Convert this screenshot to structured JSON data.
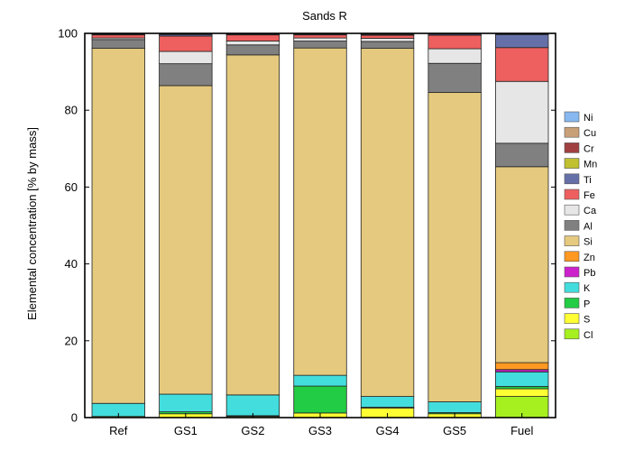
{
  "chart_data": {
    "type": "bar",
    "stacked": true,
    "title": "Sands R",
    "xlabel": "",
    "ylabel": "Elemental concentration [% by mass]",
    "ylim": [
      0,
      100
    ],
    "yticks": [
      0,
      20,
      40,
      60,
      80,
      100
    ],
    "categories": [
      "Ref",
      "GS1",
      "GS2",
      "GS3",
      "GS4",
      "GS5",
      "Fuel"
    ],
    "legend_position": "right",
    "series": [
      {
        "name": "Cl",
        "color": "#a6f020",
        "values": [
          0,
          0,
          0,
          0,
          0,
          0,
          5.5
        ]
      },
      {
        "name": "S",
        "color": "#ffff33",
        "values": [
          0.3,
          1.0,
          0.3,
          1.2,
          2.5,
          1.0,
          2.0
        ]
      },
      {
        "name": "P",
        "color": "#22cc44",
        "values": [
          0,
          0.5,
          0.2,
          7.0,
          0.2,
          0.3,
          0.6
        ]
      },
      {
        "name": "K",
        "color": "#44dddd",
        "values": [
          3.4,
          4.6,
          5.4,
          2.8,
          2.8,
          2.8,
          3.8
        ]
      },
      {
        "name": "Pb",
        "color": "#cc22cc",
        "values": [
          0,
          0,
          0,
          0,
          0,
          0,
          0.6
        ]
      },
      {
        "name": "Zn",
        "color": "#ff9922",
        "values": [
          0,
          0,
          0,
          0,
          0,
          0,
          1.8
        ]
      },
      {
        "name": "Si",
        "color": "#e5c97e",
        "values": [
          92.4,
          80.3,
          88.5,
          85.2,
          90.6,
          80.5,
          51.0
        ]
      },
      {
        "name": "Al",
        "color": "#808080",
        "values": [
          2.3,
          5.7,
          2.6,
          1.8,
          1.8,
          7.6,
          6.1
        ]
      },
      {
        "name": "Ca",
        "color": "#e6e6e6",
        "values": [
          0.4,
          3.2,
          1.0,
          0.8,
          0.8,
          3.8,
          16.1
        ]
      },
      {
        "name": "Fe",
        "color": "#ee5f5f",
        "values": [
          0.8,
          4.0,
          1.6,
          0.8,
          0.8,
          3.5,
          8.8
        ]
      },
      {
        "name": "Ti",
        "color": "#6670a8",
        "values": [
          0.2,
          0.4,
          0.2,
          0.2,
          0.2,
          0.3,
          3.4
        ]
      },
      {
        "name": "Mn",
        "color": "#c0c030",
        "values": [
          0,
          0,
          0,
          0,
          0,
          0,
          0
        ]
      },
      {
        "name": "Cr",
        "color": "#a04040",
        "values": [
          0,
          0,
          0,
          0,
          0,
          0,
          0
        ]
      },
      {
        "name": "Cu",
        "color": "#c8a078",
        "values": [
          0,
          0,
          0,
          0,
          0,
          0,
          0
        ]
      },
      {
        "name": "Ni",
        "color": "#88b8f0",
        "values": [
          0.2,
          0.2,
          0.2,
          0,
          0.2,
          0.2,
          0.1
        ]
      }
    ]
  }
}
